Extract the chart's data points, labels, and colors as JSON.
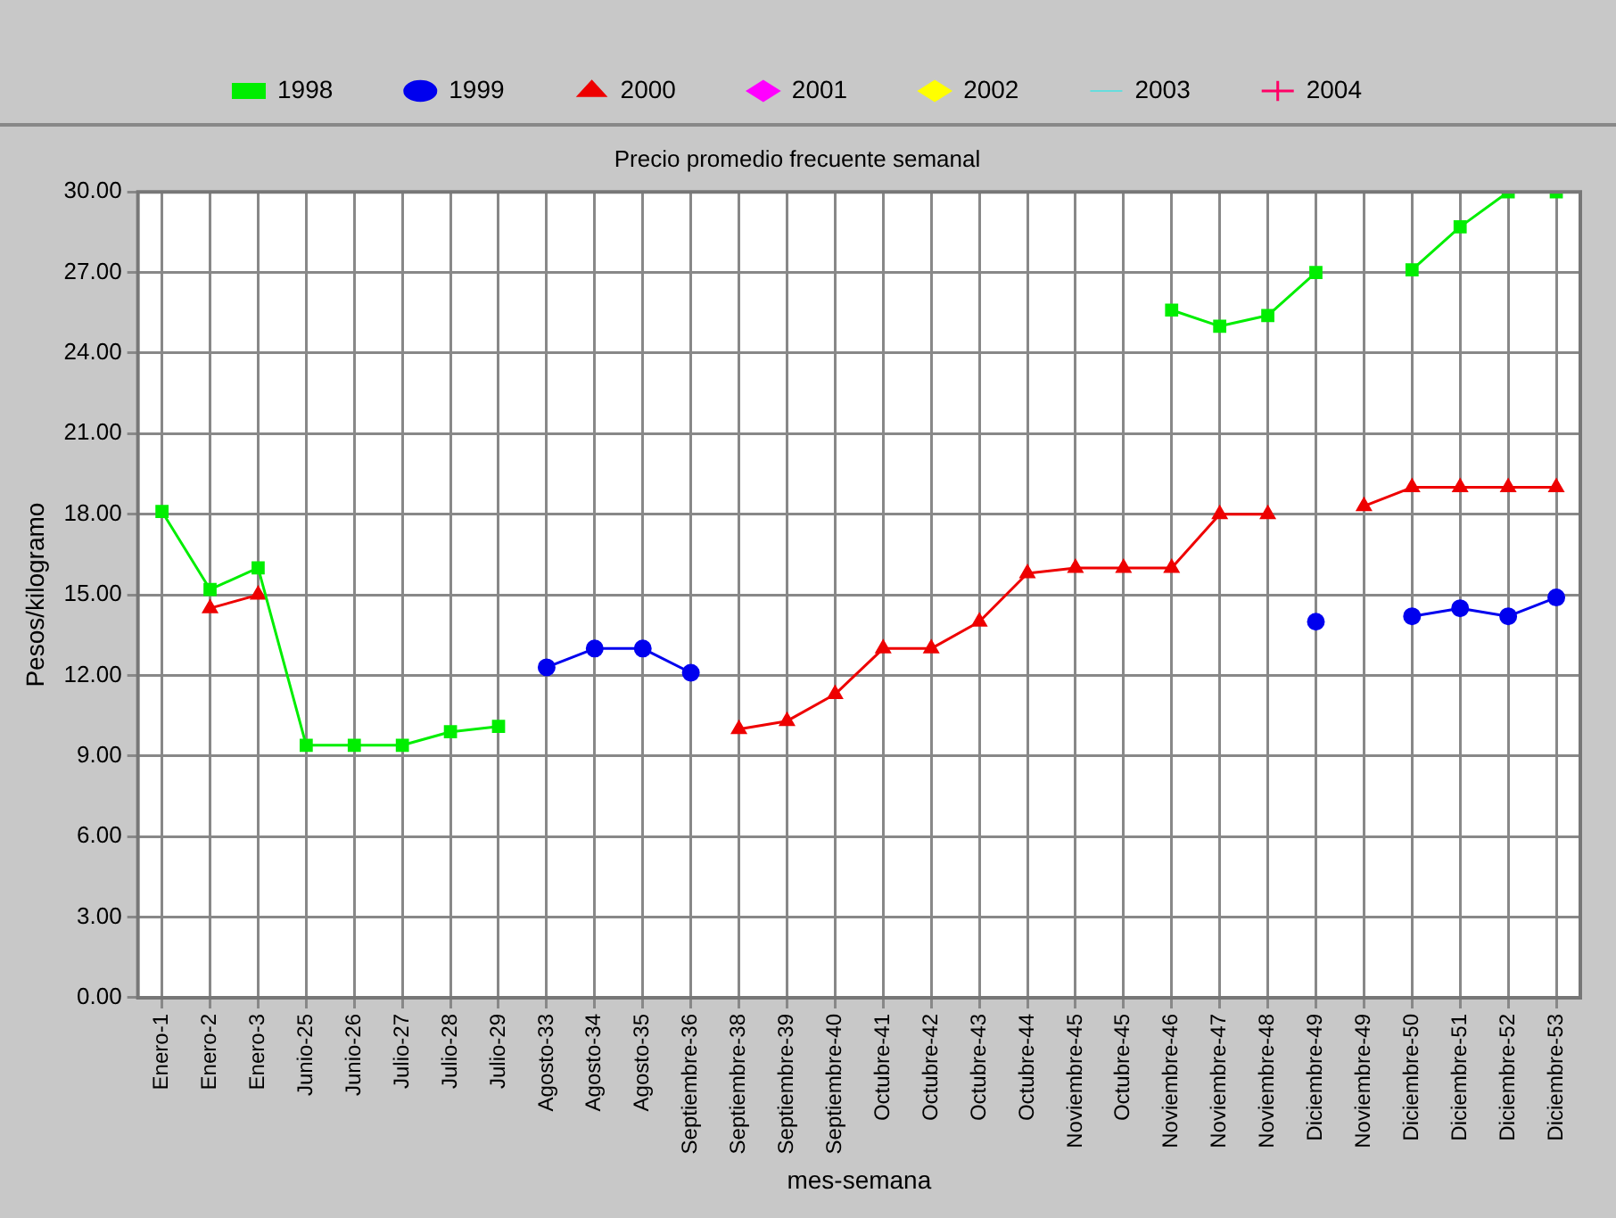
{
  "chart_data": {
    "type": "line",
    "title": "Precio promedio frecuente semanal",
    "xlabel": "mes-semana",
    "ylabel": "Pesos/kilogramo",
    "categories": [
      "Enero-1",
      "Enero-2",
      "Enero-3",
      "Junio-25",
      "Junio-26",
      "Julio-27",
      "Julio-28",
      "Julio-29",
      "Agosto-33",
      "Agosto-34",
      "Agosto-35",
      "Septiembre-36",
      "Septiembre-38",
      "Septiembre-39",
      "Septiembre-40",
      "Octubre-41",
      "Octubre-42",
      "Octubre-43",
      "Octubre-44",
      "Noviembre-45",
      "Octubre-45",
      "Noviembre-46",
      "Noviembre-47",
      "Noviembre-48",
      "Diciembre-49",
      "Noviembre-49",
      "Diciembre-50",
      "Diciembre-51",
      "Diciembre-52",
      "Diciembre-53"
    ],
    "series": [
      {
        "name": "1998",
        "color": "#00ee00",
        "marker": "square",
        "values": [
          18.1,
          15.2,
          16.0,
          9.4,
          9.4,
          9.4,
          9.9,
          10.1,
          null,
          null,
          null,
          null,
          null,
          null,
          null,
          null,
          null,
          null,
          null,
          null,
          null,
          25.6,
          25.0,
          25.4,
          27.0,
          null,
          27.1,
          28.7,
          30.0,
          30.0
        ]
      },
      {
        "name": "1999",
        "color": "#0000ee",
        "marker": "circle",
        "values": [
          null,
          null,
          null,
          null,
          null,
          null,
          null,
          null,
          12.3,
          13.0,
          13.0,
          12.1,
          null,
          null,
          null,
          null,
          null,
          null,
          null,
          null,
          null,
          null,
          null,
          null,
          14.0,
          null,
          14.2,
          14.5,
          14.2,
          14.9
        ]
      },
      {
        "name": "2000",
        "color": "#ee0000",
        "marker": "triangle",
        "values": [
          null,
          14.5,
          15.0,
          null,
          null,
          null,
          null,
          null,
          null,
          null,
          null,
          null,
          10.0,
          10.3,
          11.3,
          13.0,
          13.0,
          14.0,
          15.8,
          16.0,
          16.0,
          16.0,
          18.0,
          18.0,
          null,
          18.3,
          19.0,
          19.0,
          19.0,
          19.0
        ]
      },
      {
        "name": "2001",
        "color": "#ff00ff",
        "marker": "diamond",
        "values": [
          null,
          null,
          null,
          null,
          null,
          null,
          null,
          null,
          null,
          null,
          null,
          null,
          null,
          null,
          null,
          null,
          null,
          null,
          null,
          null,
          null,
          null,
          null,
          null,
          null,
          null,
          null,
          null,
          null,
          null
        ]
      },
      {
        "name": "2002",
        "color": "#ffff00",
        "marker": "diamond",
        "values": [
          null,
          null,
          null,
          null,
          null,
          null,
          null,
          null,
          null,
          null,
          null,
          null,
          null,
          null,
          null,
          null,
          null,
          null,
          null,
          null,
          null,
          null,
          null,
          null,
          null,
          null,
          null,
          null,
          null,
          null
        ]
      },
      {
        "name": "2003",
        "color": "#66dddd",
        "marker": "none",
        "values": [
          null,
          null,
          null,
          null,
          null,
          null,
          null,
          null,
          null,
          null,
          null,
          null,
          null,
          null,
          null,
          null,
          null,
          null,
          null,
          null,
          null,
          null,
          null,
          null,
          null,
          null,
          null,
          null,
          null,
          null
        ]
      },
      {
        "name": "2004",
        "color": "#ff0066",
        "marker": "cross",
        "values": [
          null,
          null,
          null,
          null,
          null,
          null,
          null,
          null,
          null,
          null,
          null,
          null,
          null,
          null,
          null,
          null,
          null,
          null,
          null,
          null,
          null,
          null,
          null,
          null,
          null,
          null,
          null,
          null,
          null,
          null
        ]
      }
    ],
    "ylim": [
      0,
      30
    ],
    "yticks": [
      {
        "value": 0,
        "label": "0.00"
      },
      {
        "value": 3,
        "label": "3.00"
      },
      {
        "value": 6,
        "label": "6.00"
      },
      {
        "value": 9,
        "label": "9.00"
      },
      {
        "value": 12,
        "label": "12.00"
      },
      {
        "value": 15,
        "label": "15.00"
      },
      {
        "value": 18,
        "label": "18.00"
      },
      {
        "value": 21,
        "label": "21.00"
      },
      {
        "value": 24,
        "label": "24.00"
      },
      {
        "value": 27,
        "label": "27.00"
      },
      {
        "value": 30,
        "label": "30.00"
      }
    ],
    "grid": true,
    "legend": "top",
    "line_style": "solid"
  }
}
